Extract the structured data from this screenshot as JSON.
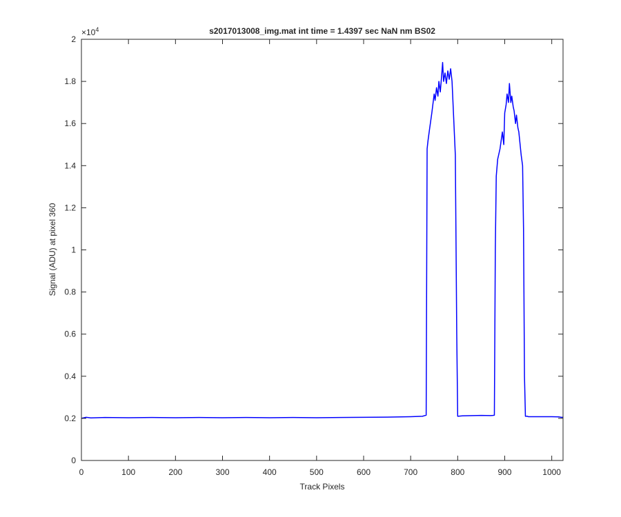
{
  "chart_data": {
    "type": "line",
    "title": "s2017013008_img.mat int time = 1.4397 sec  NaN nm BS02",
    "xlabel": "Track Pixels",
    "ylabel": "Signal (ADU) at pixel 360",
    "exponent_label": "×10",
    "exponent_power": "4",
    "xlim": [
      0,
      1024
    ],
    "ylim": [
      0,
      20000
    ],
    "grid": false,
    "x_ticks": [
      0,
      100,
      200,
      300,
      400,
      500,
      600,
      700,
      800,
      900,
      1000
    ],
    "x_tick_labels": [
      "0",
      "100",
      "200",
      "300",
      "400",
      "500",
      "600",
      "700",
      "800",
      "900",
      "1000"
    ],
    "y_ticks": [
      0,
      2000,
      4000,
      6000,
      8000,
      10000,
      12000,
      14000,
      16000,
      18000,
      20000
    ],
    "y_tick_labels": [
      "0",
      "0.2",
      "0.4",
      "0.6",
      "0.8",
      "1",
      "1.2",
      "1.4",
      "1.6",
      "1.8",
      "2"
    ],
    "series": [
      {
        "color": "#0000ff",
        "x": [
          0,
          10,
          20,
          50,
          100,
          150,
          200,
          250,
          300,
          350,
          400,
          450,
          500,
          550,
          600,
          650,
          700,
          725,
          733,
          735,
          737,
          740,
          745,
          750,
          752,
          755,
          758,
          760,
          763,
          766,
          768,
          770,
          773,
          776,
          779,
          782,
          785,
          788,
          790,
          795,
          798,
          800,
          810,
          850,
          870,
          875,
          878,
          880,
          882,
          885,
          890,
          895,
          898,
          900,
          903,
          905,
          908,
          910,
          913,
          915,
          918,
          920,
          923,
          925,
          928,
          930,
          935,
          938,
          940,
          942,
          944,
          945,
          948,
          950,
          1000,
          1015,
          1018,
          1020,
          1024
        ],
        "y": [
          2000,
          2050,
          2020,
          2040,
          2030,
          2040,
          2030,
          2040,
          2030,
          2040,
          2030,
          2040,
          2030,
          2040,
          2050,
          2060,
          2080,
          2100,
          2150,
          14800,
          15200,
          15700,
          16500,
          17400,
          17100,
          17700,
          17300,
          18000,
          17500,
          18300,
          18900,
          18000,
          18400,
          17900,
          18500,
          18100,
          18600,
          18000,
          17000,
          14500,
          6000,
          2100,
          2120,
          2140,
          2130,
          2140,
          2150,
          10000,
          13500,
          14300,
          14800,
          15600,
          15000,
          16500,
          16900,
          17400,
          17000,
          17900,
          17000,
          17300,
          16800,
          16600,
          16000,
          16400,
          15800,
          15600,
          14500,
          14000,
          11000,
          4000,
          2100,
          2100,
          2100,
          2080,
          2080,
          2070,
          2060,
          2050,
          2050
        ]
      }
    ]
  }
}
